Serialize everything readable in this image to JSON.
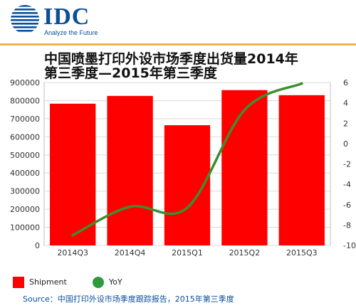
{
  "header": {
    "logo_text": "IDC",
    "tagline": "Analyze the Future",
    "logo_icon": "globe-icon",
    "brand_color": "#0a4f9a",
    "rule_color": "#f0b54a"
  },
  "source_text": "Source：中国打印外设市场季度跟踪报告，2015年第三季度",
  "chart_data": {
    "type": "bar",
    "title": "中国喷墨打印外设市场季度出货量2014年第三季度—2015年第三季度",
    "categories": [
      "2014Q3",
      "2014Q4",
      "2015Q1",
      "2015Q2",
      "2015Q3"
    ],
    "series": [
      {
        "name": "Shipment",
        "type": "bar",
        "axis": "left",
        "color": "#ff0000",
        "values": [
          783000,
          826000,
          664000,
          858000,
          830000
        ]
      },
      {
        "name": "YoY",
        "type": "line",
        "axis": "right",
        "color": "#3a8f2e",
        "values": [
          -9.0,
          -6.2,
          -6.3,
          3.3,
          5.9
        ]
      }
    ],
    "y_left": {
      "ylim": [
        0,
        900000
      ],
      "ticks": [
        "0",
        "100000",
        "200000",
        "300000",
        "400000",
        "500000",
        "600000",
        "700000",
        "800000",
        "900000"
      ]
    },
    "y_right": {
      "ylim": [
        -10,
        6
      ],
      "ticks": [
        "-10",
        "-8",
        "-6",
        "-4",
        "-2",
        "0",
        "2",
        "4",
        "6"
      ]
    },
    "grid": true,
    "legend_position": "bottom-left"
  }
}
